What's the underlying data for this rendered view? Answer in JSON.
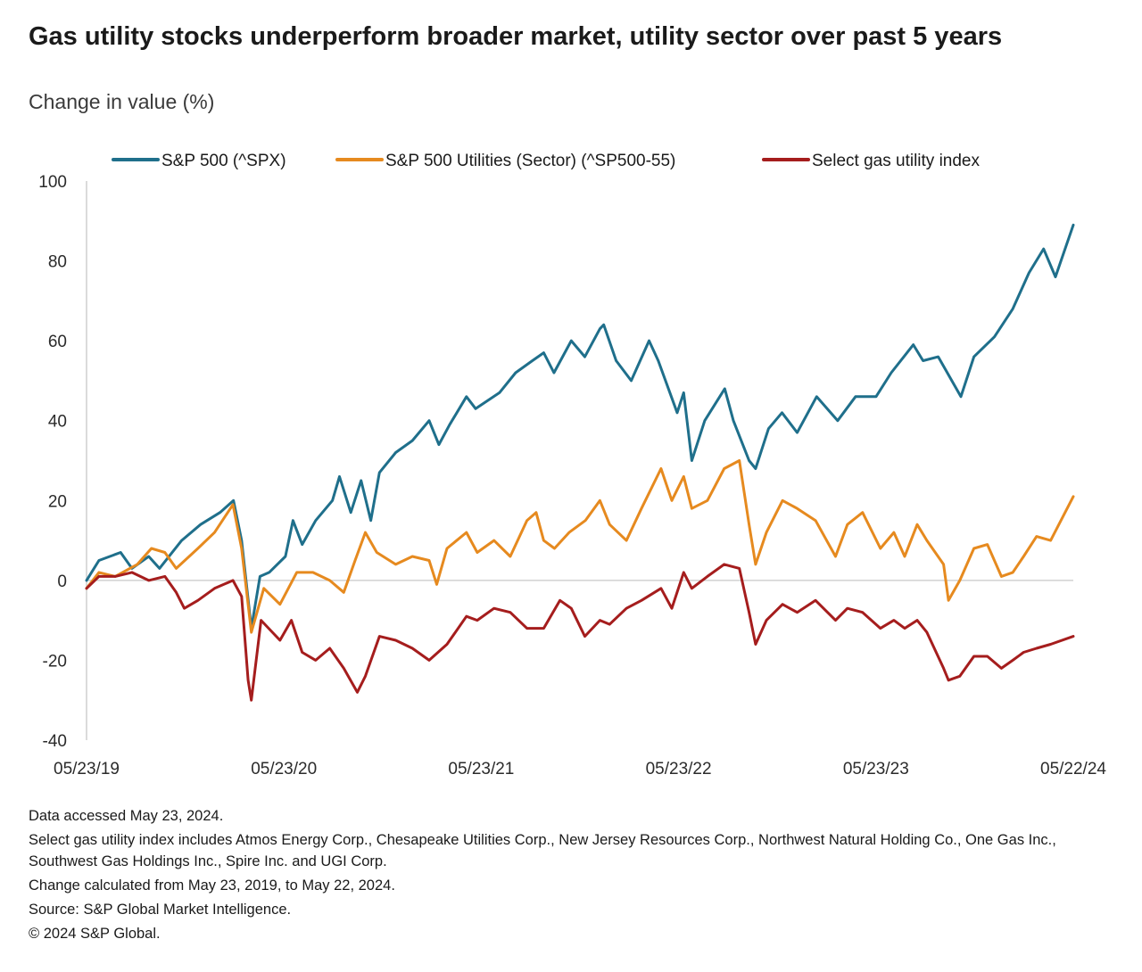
{
  "header": {
    "title": "Gas utility stocks underperform broader market, utility sector over past 5 years",
    "subtitle": "Change in value (%)"
  },
  "chart_data": {
    "type": "line",
    "ylabel": "Change in value (%)",
    "ylim": [
      -40,
      100
    ],
    "yticks": [
      -40,
      -20,
      0,
      20,
      40,
      60,
      80,
      100
    ],
    "xlim": [
      "2019-05-23",
      "2024-05-22"
    ],
    "xticks": [
      "05/23/19",
      "05/23/20",
      "05/23/21",
      "05/23/22",
      "05/23/23",
      "05/22/24"
    ],
    "grid": false,
    "zero_line": true,
    "legend_position": "top",
    "series": [
      {
        "name": "S&P 500 (^SPX)",
        "color": "#1f6f8b",
        "points": [
          [
            "2019-05-23",
            0
          ],
          [
            "2019-06-15",
            5
          ],
          [
            "2019-07-25",
            7
          ],
          [
            "2019-08-15",
            3
          ],
          [
            "2019-09-15",
            6
          ],
          [
            "2019-10-05",
            3
          ],
          [
            "2019-11-15",
            10
          ],
          [
            "2019-12-20",
            14
          ],
          [
            "2020-01-25",
            17
          ],
          [
            "2020-02-19",
            20
          ],
          [
            "2020-03-05",
            10
          ],
          [
            "2020-03-23",
            -12
          ],
          [
            "2020-04-08",
            1
          ],
          [
            "2020-04-25",
            2
          ],
          [
            "2020-05-25",
            6
          ],
          [
            "2020-06-08",
            15
          ],
          [
            "2020-06-25",
            9
          ],
          [
            "2020-07-20",
            15
          ],
          [
            "2020-08-20",
            20
          ],
          [
            "2020-09-02",
            26
          ],
          [
            "2020-09-23",
            17
          ],
          [
            "2020-10-12",
            25
          ],
          [
            "2020-10-30",
            15
          ],
          [
            "2020-11-15",
            27
          ],
          [
            "2020-12-15",
            32
          ],
          [
            "2021-01-15",
            35
          ],
          [
            "2021-02-15",
            40
          ],
          [
            "2021-03-05",
            34
          ],
          [
            "2021-03-25",
            39
          ],
          [
            "2021-04-25",
            46
          ],
          [
            "2021-05-12",
            43
          ],
          [
            "2021-06-25",
            47
          ],
          [
            "2021-07-25",
            52
          ],
          [
            "2021-08-25",
            55
          ],
          [
            "2021-09-15",
            57
          ],
          [
            "2021-10-04",
            52
          ],
          [
            "2021-11-05",
            60
          ],
          [
            "2021-11-30",
            56
          ],
          [
            "2021-12-28",
            63
          ],
          [
            "2022-01-04",
            64
          ],
          [
            "2022-01-27",
            55
          ],
          [
            "2022-02-24",
            50
          ],
          [
            "2022-03-29",
            60
          ],
          [
            "2022-04-15",
            55
          ],
          [
            "2022-05-20",
            42
          ],
          [
            "2022-06-01",
            47
          ],
          [
            "2022-06-16",
            30
          ],
          [
            "2022-07-10",
            40
          ],
          [
            "2022-08-16",
            48
          ],
          [
            "2022-09-01",
            40
          ],
          [
            "2022-09-30",
            30
          ],
          [
            "2022-10-12",
            28
          ],
          [
            "2022-11-05",
            38
          ],
          [
            "2022-11-30",
            42
          ],
          [
            "2022-12-28",
            37
          ],
          [
            "2023-02-02",
            46
          ],
          [
            "2023-03-13",
            40
          ],
          [
            "2023-04-15",
            46
          ],
          [
            "2023-05-23",
            46
          ],
          [
            "2023-06-20",
            52
          ],
          [
            "2023-07-31",
            59
          ],
          [
            "2023-08-18",
            55
          ],
          [
            "2023-09-15",
            56
          ],
          [
            "2023-10-27",
            46
          ],
          [
            "2023-11-20",
            56
          ],
          [
            "2023-12-28",
            61
          ],
          [
            "2024-01-31",
            68
          ],
          [
            "2024-03-01",
            77
          ],
          [
            "2024-03-28",
            83
          ],
          [
            "2024-04-19",
            76
          ],
          [
            "2024-05-22",
            89
          ]
        ]
      },
      {
        "name": "S&P 500 Utilities (Sector) (^SP500-55)",
        "color": "#e68a1f",
        "points": [
          [
            "2019-05-23",
            -2
          ],
          [
            "2019-06-15",
            2
          ],
          [
            "2019-07-15",
            1
          ],
          [
            "2019-08-25",
            4
          ],
          [
            "2019-09-20",
            8
          ],
          [
            "2019-10-15",
            7
          ],
          [
            "2019-11-05",
            3
          ],
          [
            "2019-12-15",
            8
          ],
          [
            "2020-01-15",
            12
          ],
          [
            "2020-02-18",
            19
          ],
          [
            "2020-03-05",
            8
          ],
          [
            "2020-03-23",
            -13
          ],
          [
            "2020-04-15",
            -2
          ],
          [
            "2020-05-15",
            -6
          ],
          [
            "2020-06-15",
            2
          ],
          [
            "2020-07-15",
            2
          ],
          [
            "2020-08-15",
            0
          ],
          [
            "2020-09-10",
            -3
          ],
          [
            "2020-10-01",
            5
          ],
          [
            "2020-10-20",
            12
          ],
          [
            "2020-11-10",
            7
          ],
          [
            "2020-12-15",
            4
          ],
          [
            "2021-01-15",
            6
          ],
          [
            "2021-02-15",
            5
          ],
          [
            "2021-03-01",
            -1
          ],
          [
            "2021-03-20",
            8
          ],
          [
            "2021-04-25",
            12
          ],
          [
            "2021-05-15",
            7
          ],
          [
            "2021-06-15",
            10
          ],
          [
            "2021-07-15",
            6
          ],
          [
            "2021-08-15",
            15
          ],
          [
            "2021-09-01",
            17
          ],
          [
            "2021-09-15",
            10
          ],
          [
            "2021-10-05",
            8
          ],
          [
            "2021-11-01",
            12
          ],
          [
            "2021-12-01",
            15
          ],
          [
            "2021-12-28",
            20
          ],
          [
            "2022-01-15",
            14
          ],
          [
            "2022-02-15",
            10
          ],
          [
            "2022-03-15",
            18
          ],
          [
            "2022-04-20",
            28
          ],
          [
            "2022-05-10",
            20
          ],
          [
            "2022-06-01",
            26
          ],
          [
            "2022-06-16",
            18
          ],
          [
            "2022-07-15",
            20
          ],
          [
            "2022-08-15",
            28
          ],
          [
            "2022-09-12",
            30
          ],
          [
            "2022-09-30",
            14
          ],
          [
            "2022-10-12",
            4
          ],
          [
            "2022-11-01",
            12
          ],
          [
            "2022-12-01",
            20
          ],
          [
            "2022-12-28",
            18
          ],
          [
            "2023-01-31",
            15
          ],
          [
            "2023-03-09",
            6
          ],
          [
            "2023-03-31",
            14
          ],
          [
            "2023-04-28",
            17
          ],
          [
            "2023-05-31",
            8
          ],
          [
            "2023-06-25",
            12
          ],
          [
            "2023-07-15",
            6
          ],
          [
            "2023-08-07",
            14
          ],
          [
            "2023-08-25",
            10
          ],
          [
            "2023-09-25",
            4
          ],
          [
            "2023-10-04",
            -5
          ],
          [
            "2023-10-25",
            0
          ],
          [
            "2023-11-20",
            8
          ],
          [
            "2023-12-15",
            9
          ],
          [
            "2024-01-10",
            1
          ],
          [
            "2024-01-31",
            2
          ],
          [
            "2024-02-20",
            6
          ],
          [
            "2024-03-15",
            11
          ],
          [
            "2024-04-10",
            10
          ],
          [
            "2024-05-22",
            21
          ]
        ]
      },
      {
        "name": "Select gas utility index",
        "color": "#a51d1d",
        "points": [
          [
            "2019-05-23",
            -2
          ],
          [
            "2019-06-15",
            1
          ],
          [
            "2019-07-15",
            1
          ],
          [
            "2019-08-15",
            2
          ],
          [
            "2019-09-15",
            0
          ],
          [
            "2019-10-15",
            1
          ],
          [
            "2019-11-05",
            -3
          ],
          [
            "2019-11-20",
            -7
          ],
          [
            "2019-12-15",
            -5
          ],
          [
            "2020-01-15",
            -2
          ],
          [
            "2020-02-18",
            0
          ],
          [
            "2020-03-05",
            -4
          ],
          [
            "2020-03-17",
            -25
          ],
          [
            "2020-03-23",
            -30
          ],
          [
            "2020-04-10",
            -10
          ],
          [
            "2020-05-15",
            -15
          ],
          [
            "2020-06-05",
            -10
          ],
          [
            "2020-06-25",
            -18
          ],
          [
            "2020-07-20",
            -20
          ],
          [
            "2020-08-15",
            -17
          ],
          [
            "2020-09-10",
            -22
          ],
          [
            "2020-10-05",
            -28
          ],
          [
            "2020-10-20",
            -24
          ],
          [
            "2020-11-15",
            -14
          ],
          [
            "2020-12-15",
            -15
          ],
          [
            "2021-01-15",
            -17
          ],
          [
            "2021-02-15",
            -20
          ],
          [
            "2021-03-20",
            -16
          ],
          [
            "2021-04-25",
            -9
          ],
          [
            "2021-05-15",
            -10
          ],
          [
            "2021-06-15",
            -7
          ],
          [
            "2021-07-15",
            -8
          ],
          [
            "2021-08-15",
            -12
          ],
          [
            "2021-09-15",
            -12
          ],
          [
            "2021-10-15",
            -5
          ],
          [
            "2021-11-05",
            -7
          ],
          [
            "2021-11-30",
            -14
          ],
          [
            "2021-12-28",
            -10
          ],
          [
            "2022-01-15",
            -11
          ],
          [
            "2022-02-15",
            -7
          ],
          [
            "2022-03-15",
            -5
          ],
          [
            "2022-04-20",
            -2
          ],
          [
            "2022-05-10",
            -7
          ],
          [
            "2022-06-01",
            2
          ],
          [
            "2022-06-16",
            -2
          ],
          [
            "2022-07-15",
            1
          ],
          [
            "2022-08-15",
            4
          ],
          [
            "2022-09-12",
            3
          ],
          [
            "2022-09-30",
            -8
          ],
          [
            "2022-10-12",
            -16
          ],
          [
            "2022-11-01",
            -10
          ],
          [
            "2022-12-01",
            -6
          ],
          [
            "2022-12-28",
            -8
          ],
          [
            "2023-01-31",
            -5
          ],
          [
            "2023-03-09",
            -10
          ],
          [
            "2023-03-31",
            -7
          ],
          [
            "2023-04-28",
            -8
          ],
          [
            "2023-05-31",
            -12
          ],
          [
            "2023-06-25",
            -10
          ],
          [
            "2023-07-15",
            -12
          ],
          [
            "2023-08-07",
            -10
          ],
          [
            "2023-08-25",
            -13
          ],
          [
            "2023-09-25",
            -22
          ],
          [
            "2023-10-04",
            -25
          ],
          [
            "2023-10-25",
            -24
          ],
          [
            "2023-11-20",
            -19
          ],
          [
            "2023-12-15",
            -19
          ],
          [
            "2024-01-10",
            -22
          ],
          [
            "2024-01-31",
            -20
          ],
          [
            "2024-02-20",
            -18
          ],
          [
            "2024-03-15",
            -17
          ],
          [
            "2024-04-10",
            -16
          ],
          [
            "2024-05-22",
            -14
          ]
        ]
      }
    ]
  },
  "footnotes": {
    "line1": "Data accessed May 23, 2024.",
    "line2": "Select gas utility index includes Atmos Energy Corp., Chesapeake Utilities Corp., New Jersey Resources Corp., Northwest Natural Holding Co., One Gas Inc., Southwest Gas Holdings Inc., Spire Inc. and UGI Corp.",
    "line3": "Change calculated from May 23, 2019, to May 22, 2024.",
    "line4": "Source: S&P Global Market Intelligence.",
    "line5": "© 2024 S&P Global."
  }
}
